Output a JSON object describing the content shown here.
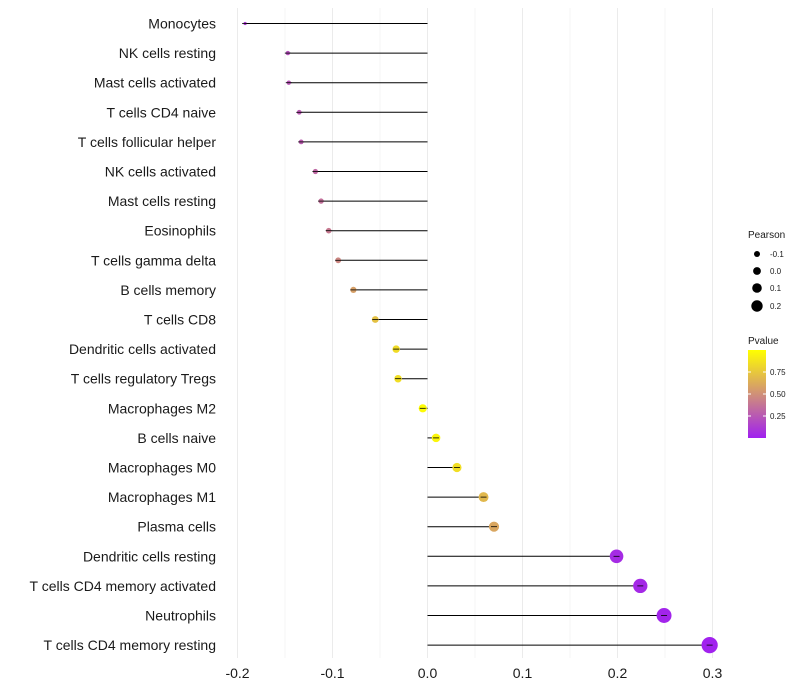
{
  "chart_data": {
    "type": "lollipop",
    "categories": [
      "Monocytes",
      "NK cells resting",
      "Mast cells activated",
      "T cells CD4 naive",
      "T cells follicular helper",
      "NK cells activated",
      "Mast cells resting",
      "Eosinophils",
      "T cells gamma delta",
      "B cells memory",
      "T cells CD8",
      "Dendritic cells activated",
      "T cells regulatory  Tregs ",
      "Macrophages M2",
      "B cells naive",
      "Macrophages M0",
      "Macrophages M1",
      "Plasma cells",
      "Dendritic cells resting",
      "T cells CD4 memory activated",
      "Neutrophils",
      "T cells CD4 memory resting"
    ],
    "pearson": [
      -0.192,
      -0.147,
      -0.146,
      -0.135,
      -0.133,
      -0.118,
      -0.112,
      -0.104,
      -0.094,
      -0.078,
      -0.055,
      -0.033,
      -0.031,
      -0.005,
      0.009,
      0.031,
      0.059,
      0.07,
      0.199,
      0.224,
      0.249,
      0.297
    ],
    "pvalue": [
      0.12,
      0.22,
      0.24,
      0.26,
      0.27,
      0.32,
      0.36,
      0.4,
      0.46,
      0.57,
      0.72,
      0.84,
      0.85,
      0.98,
      0.96,
      0.85,
      0.68,
      0.6,
      0.05,
      0.04,
      0.02,
      0.01
    ],
    "x_axis": {
      "range": [
        -0.2,
        0.3
      ],
      "ticks": [
        -0.2,
        -0.1,
        0.0,
        0.1,
        0.2,
        0.3
      ],
      "tick_labels": [
        "-0.2",
        "-0.1",
        "0.0",
        "0.1",
        "0.2",
        "0.3"
      ]
    },
    "grid": true,
    "legend_size": {
      "title": "Pearson",
      "values": [
        -0.1,
        0.0,
        0.1,
        0.2
      ],
      "labels": [
        "-0.1",
        "0.0",
        "0.1",
        "0.2"
      ]
    },
    "legend_color": {
      "title": "Pvalue",
      "ticks": [
        0.25,
        0.5,
        0.75
      ],
      "tick_labels": [
        "0.25",
        "0.50",
        "0.75"
      ],
      "range": [
        0.0,
        1.0
      ],
      "color_low": "#a020f0",
      "color_high": "#ffff00"
    },
    "legend_position": "right",
    "colors": {
      "segment": "#000000",
      "grid": "#ebebeb"
    }
  }
}
